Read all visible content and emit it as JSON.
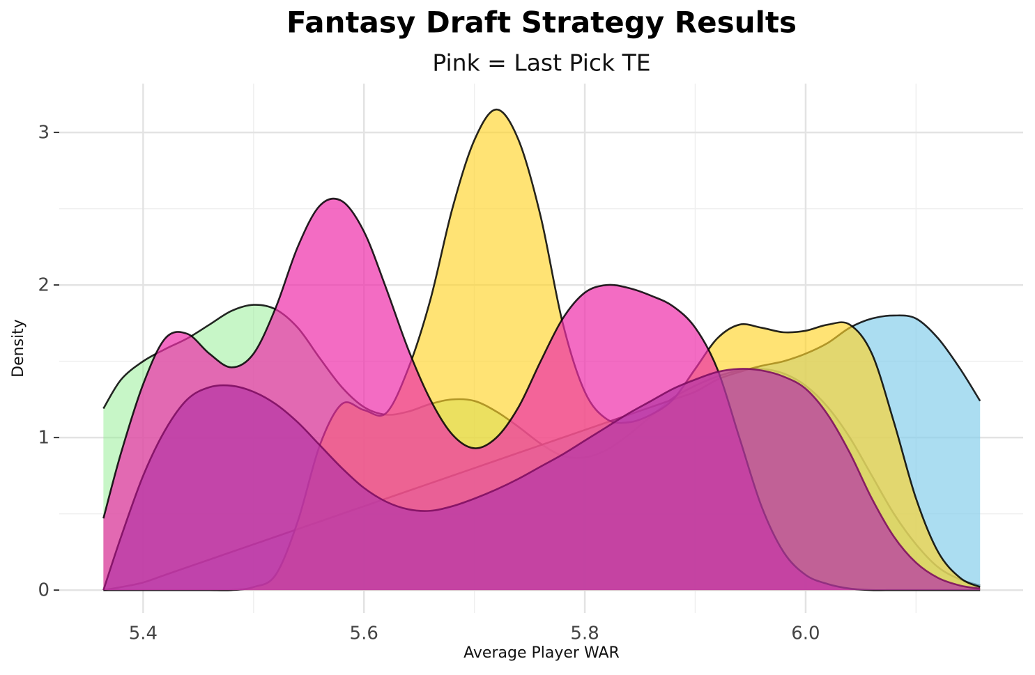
{
  "chart_data": {
    "type": "density",
    "title": "Fantasy Draft Strategy Results",
    "subtitle": "Pink = Last Pick TE",
    "x_label": "Average Player WAR",
    "y_label": "Density",
    "xlim": [
      5.324,
      6.197
    ],
    "ylim": [
      -0.15,
      3.32
    ],
    "xticks": [
      5.4,
      5.6,
      5.8,
      {
        "value": 6,
        "label": "6.0"
      }
    ],
    "yticks": [
      0,
      1,
      2,
      3
    ],
    "x_minor_grid": [
      5.5,
      5.7,
      5.9,
      6.1
    ],
    "y_minor_grid": [
      0.5,
      1.5,
      2.5
    ],
    "grid": true,
    "x": [
      5.364,
      5.38,
      5.4,
      5.42,
      5.44,
      5.46,
      5.48,
      5.5,
      5.52,
      5.54,
      5.56,
      5.58,
      5.6,
      5.62,
      5.64,
      5.66,
      5.68,
      5.7,
      5.72,
      5.74,
      5.76,
      5.78,
      5.8,
      5.82,
      5.84,
      5.86,
      5.88,
      5.9,
      5.92,
      5.94,
      5.96,
      5.98,
      6.0,
      6.02,
      6.04,
      6.06,
      6.08,
      6.1,
      6.12,
      6.14,
      6.158
    ],
    "series": [
      {
        "color": "#90ee90",
        "opacity": 0.5,
        "values": [
          1.19,
          1.38,
          1.5,
          1.58,
          1.65,
          1.74,
          1.83,
          1.87,
          1.84,
          1.72,
          1.52,
          1.33,
          1.2,
          1.15,
          1.17,
          1.22,
          1.25,
          1.24,
          1.17,
          1.07,
          0.96,
          0.88,
          0.87,
          0.92,
          1.02,
          1.14,
          1.26,
          1.34,
          1.4,
          1.44,
          1.45,
          1.42,
          1.34,
          1.2,
          1.0,
          0.75,
          0.5,
          0.3,
          0.15,
          0.07,
          0.03
        ]
      },
      {
        "color": "#87ceeb",
        "opacity": 0.7,
        "values": [
          0,
          0.02,
          0.05,
          0.1,
          0.15,
          0.2,
          0.25,
          0.3,
          0.35,
          0.4,
          0.45,
          0.5,
          0.55,
          0.6,
          0.65,
          0.7,
          0.75,
          0.8,
          0.85,
          0.9,
          0.95,
          1.0,
          1.05,
          1.1,
          1.15,
          1.2,
          1.25,
          1.3,
          1.38,
          1.43,
          1.47,
          1.5,
          1.55,
          1.62,
          1.72,
          1.78,
          1.8,
          1.78,
          1.65,
          1.45,
          1.24
        ]
      },
      {
        "color": "#ffd42a",
        "opacity": 0.65,
        "values": [
          0,
          0,
          0,
          0,
          0,
          0,
          0,
          0.02,
          0.1,
          0.45,
          0.95,
          1.22,
          1.18,
          1.16,
          1.45,
          1.9,
          2.5,
          2.95,
          3.15,
          2.95,
          2.45,
          1.75,
          1.3,
          1.12,
          1.1,
          1.15,
          1.25,
          1.45,
          1.65,
          1.74,
          1.72,
          1.69,
          1.7,
          1.74,
          1.74,
          1.55,
          1.1,
          0.6,
          0.25,
          0.08,
          0.02
        ]
      },
      {
        "color": "#ee2eaa",
        "opacity": 0.7,
        "values": [
          0.47,
          0.9,
          1.35,
          1.65,
          1.68,
          1.55,
          1.46,
          1.55,
          1.85,
          2.25,
          2.52,
          2.55,
          2.35,
          1.98,
          1.58,
          1.25,
          1.02,
          0.93,
          1.0,
          1.2,
          1.5,
          1.78,
          1.95,
          2.0,
          1.98,
          1.93,
          1.86,
          1.72,
          1.45,
          1.0,
          0.55,
          0.25,
          0.1,
          0.04,
          0.01,
          0,
          0,
          0,
          0,
          0,
          0
        ]
      },
      {
        "color": "#b83aa6",
        "opacity": 0.75,
        "values": [
          0,
          0.35,
          0.75,
          1.05,
          1.25,
          1.33,
          1.34,
          1.3,
          1.22,
          1.1,
          0.95,
          0.8,
          0.67,
          0.58,
          0.53,
          0.52,
          0.55,
          0.6,
          0.66,
          0.73,
          0.81,
          0.89,
          0.98,
          1.07,
          1.16,
          1.24,
          1.32,
          1.38,
          1.43,
          1.45,
          1.44,
          1.4,
          1.32,
          1.15,
          0.9,
          0.6,
          0.35,
          0.18,
          0.08,
          0.03,
          0.01
        ]
      }
    ]
  }
}
